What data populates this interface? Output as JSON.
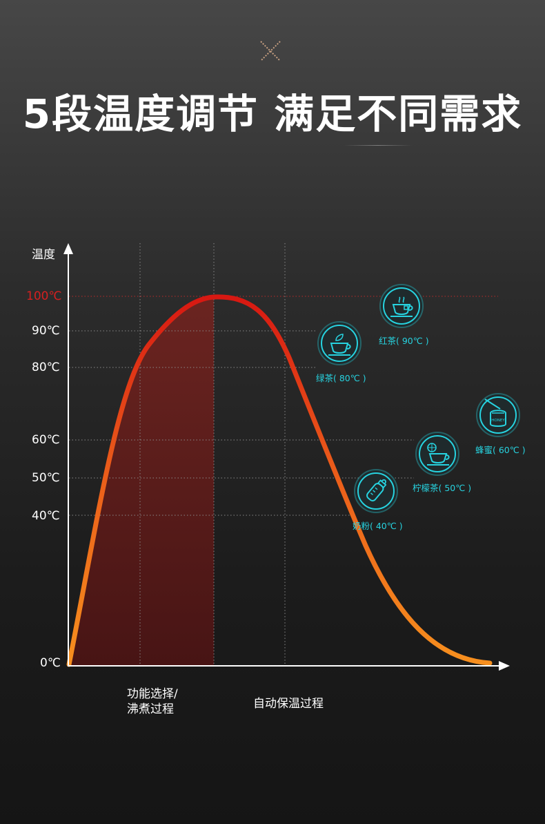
{
  "headline": {
    "text": "5段温度调节 满足不同需求"
  },
  "colors": {
    "accent_cyan": "#27d3e0",
    "curve_hot": "#d71812",
    "curve_warm": "#f7901e",
    "marker_100": "#d62020",
    "fill_region": "#6b1a18"
  },
  "chart_data": {
    "type": "line",
    "ylabel": "温度",
    "y_ticks": [
      "0℃",
      "40℃",
      "50℃",
      "60℃",
      "80℃",
      "90℃",
      "100℃"
    ],
    "x_phases": [
      {
        "label_line1": "功能选择/",
        "label_line2": "沸煮过程"
      },
      {
        "label": "自动保温过程"
      }
    ],
    "curve": {
      "peak": 100,
      "start": 0,
      "end": 0
    },
    "presets": [
      {
        "name": "红茶",
        "temp_label": "90℃",
        "icon": "black-tea-icon"
      },
      {
        "name": "绿茶",
        "temp_label": "80℃",
        "icon": "green-tea-icon"
      },
      {
        "name": "蜂蜜",
        "temp_label": "60℃",
        "icon": "honey-jar-icon",
        "icon_text": "HONEY"
      },
      {
        "name": "柠檬茶",
        "temp_label": "50℃",
        "icon": "lemon-tea-icon"
      },
      {
        "name": "奶粉",
        "temp_label": "40℃",
        "icon": "baby-bottle-icon"
      }
    ]
  },
  "captions": {
    "black_tea": "红茶( 90℃ )",
    "green_tea": "绿茶( 80℃ )",
    "honey": "蜂蜜( 60℃ )",
    "lemon_tea": "柠檬茶( 50℃ )",
    "milk": "奶粉( 40℃ )"
  }
}
